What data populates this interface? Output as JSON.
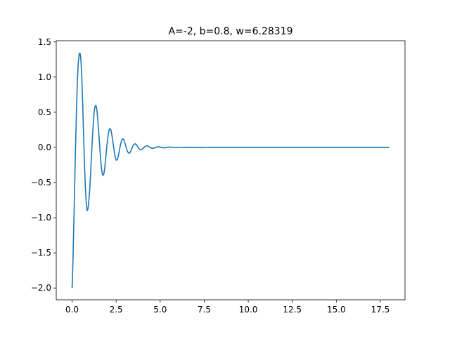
{
  "chart_data": {
    "type": "line",
    "title": "A=-2, b=0.8, w=6.28319",
    "xlabel": "",
    "ylabel": "",
    "xlim": [
      -0.9,
      18.9
    ],
    "ylim": [
      -2.1675,
      1.5175
    ],
    "x_ticks": [
      0.0,
      2.5,
      5.0,
      7.5,
      10.0,
      12.5,
      15.0,
      17.5
    ],
    "x_tick_labels": [
      "0.0",
      "2.5",
      "5.0",
      "7.5",
      "10.0",
      "12.5",
      "15.0",
      "17.5"
    ],
    "y_ticks": [
      -2.0,
      -1.5,
      -1.0,
      -0.5,
      0.0,
      0.5,
      1.0,
      1.5
    ],
    "y_tick_labels": [
      "−2.0",
      "−1.5",
      "−1.0",
      "−0.5",
      "0.0",
      "0.5",
      "1.0",
      "1.5"
    ],
    "grid": false,
    "series": [
      {
        "color": "#1f77b4",
        "x": [
          0.0,
          0.05,
          0.1,
          0.15,
          0.2,
          0.25,
          0.3,
          0.35,
          0.4,
          0.45,
          0.5,
          0.55,
          0.6,
          0.65,
          0.7,
          0.75,
          0.8,
          0.85,
          0.9,
          0.95,
          1.0,
          1.05,
          1.1,
          1.15,
          1.2,
          1.25,
          1.3,
          1.35,
          1.4,
          1.45,
          1.5,
          1.55,
          1.6,
          1.65,
          1.7,
          1.75,
          1.8,
          1.85,
          1.9,
          1.95,
          2.0,
          2.05,
          2.1,
          2.15,
          2.2,
          2.25,
          2.3,
          2.35,
          2.4,
          2.45,
          2.5,
          2.55,
          2.6,
          2.65,
          2.7,
          2.75,
          2.8,
          2.85,
          2.9,
          2.95,
          3.0,
          3.05,
          3.1,
          3.15,
          3.2,
          3.25,
          3.3,
          3.35,
          3.4,
          3.45,
          3.5,
          3.55,
          3.6,
          3.65,
          3.7,
          3.75,
          3.8,
          3.85,
          3.9,
          3.95,
          4.0,
          4.05,
          4.1,
          4.15,
          4.2,
          4.25,
          4.3,
          4.35,
          4.4,
          4.45,
          4.5,
          4.55,
          4.6,
          4.65,
          4.7,
          4.75,
          4.8,
          4.85,
          4.9,
          4.95,
          5.0,
          5.1,
          5.2,
          5.3,
          5.4,
          5.5,
          5.6,
          5.7,
          5.8,
          5.9,
          6.0,
          6.1,
          6.2,
          6.3,
          6.4,
          6.5,
          6.6,
          6.7,
          6.8,
          6.9,
          7.0,
          7.1,
          7.2,
          7.3,
          7.4,
          7.5,
          7.6,
          7.7,
          7.8,
          7.9,
          8.0,
          8.2,
          8.4,
          8.6,
          8.8,
          9.0,
          9.5,
          10.0,
          11.0,
          12.0,
          13.0,
          14.0,
          15.0,
          16.0,
          17.0,
          18.0
        ],
        "y": [
          -2.0,
          -1.6,
          -1.05,
          -0.5,
          0.05,
          0.55,
          0.95,
          1.2,
          1.33,
          1.34,
          1.25,
          1.0,
          0.62,
          0.2,
          -0.22,
          -0.55,
          -0.78,
          -0.9,
          -0.88,
          -0.76,
          -0.6,
          -0.38,
          -0.12,
          0.12,
          0.33,
          0.5,
          0.58,
          0.6,
          0.55,
          0.42,
          0.26,
          0.08,
          -0.1,
          -0.25,
          -0.36,
          -0.4,
          -0.38,
          -0.3,
          -0.18,
          -0.04,
          0.08,
          0.18,
          0.25,
          0.27,
          0.25,
          0.19,
          0.11,
          0.02,
          -0.07,
          -0.14,
          -0.18,
          -0.18,
          -0.15,
          -0.09,
          -0.02,
          0.04,
          0.09,
          0.12,
          0.12,
          0.1,
          0.06,
          0.02,
          -0.03,
          -0.06,
          -0.08,
          -0.08,
          -0.07,
          -0.04,
          -0.01,
          0.02,
          0.04,
          0.05,
          0.05,
          0.04,
          0.02,
          0.0,
          -0.02,
          -0.03,
          -0.035,
          -0.03,
          -0.02,
          -0.01,
          0.005,
          0.015,
          0.02,
          0.022,
          0.02,
          0.012,
          0.004,
          -0.004,
          -0.01,
          -0.013,
          -0.013,
          -0.01,
          -0.005,
          0.0,
          0.005,
          0.008,
          0.009,
          0.007,
          0.004,
          -0.002,
          -0.006,
          -0.005,
          0.0,
          0.004,
          0.004,
          0.0,
          -0.003,
          -0.003,
          0.0,
          0.002,
          0.002,
          0.0,
          -0.0015,
          -0.0015,
          0.0,
          0.001,
          0.001,
          0.0,
          -0.0007,
          -0.0007,
          0.0,
          0.0005,
          0.0005,
          0.0,
          -0.0003,
          -0.0003,
          0.0,
          0.0002,
          0.0002,
          0.0,
          0.0001,
          0.0,
          0.0,
          0.0,
          0.0,
          0.0,
          0.0,
          0.0,
          0.0,
          0.0,
          0.0,
          0.0,
          0.0,
          0.0
        ]
      }
    ]
  }
}
